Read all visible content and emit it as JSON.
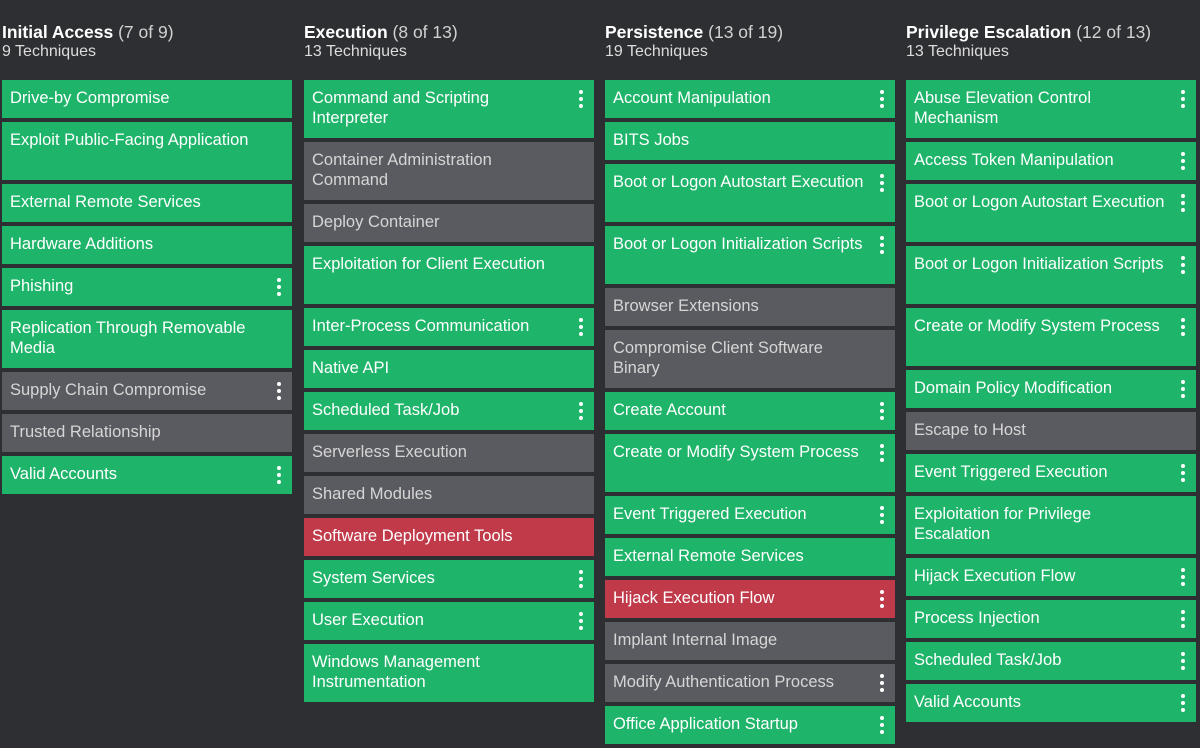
{
  "columns": [
    {
      "name": "Initial Access",
      "count": "(7 of 9)",
      "subtitle": "9 Techniques",
      "techniques": [
        {
          "label": "Drive-by Compromise",
          "status": "green",
          "lines": 1,
          "menu": false
        },
        {
          "label": "Exploit Public-Facing Application",
          "status": "green",
          "lines": 2,
          "menu": false
        },
        {
          "label": "External Remote Services",
          "status": "green",
          "lines": 1,
          "menu": false
        },
        {
          "label": "Hardware Additions",
          "status": "green",
          "lines": 1,
          "menu": false
        },
        {
          "label": "Phishing",
          "status": "green",
          "lines": 1,
          "menu": true
        },
        {
          "label": "Replication Through Removable Media",
          "status": "green",
          "lines": 2,
          "menu": false
        },
        {
          "label": "Supply Chain Compromise",
          "status": "gray",
          "lines": 1,
          "menu": true
        },
        {
          "label": "Trusted Relationship",
          "status": "gray",
          "lines": 1,
          "menu": false
        },
        {
          "label": "Valid Accounts",
          "status": "green",
          "lines": 1,
          "menu": true
        }
      ]
    },
    {
      "name": "Execution",
      "count": "(8 of 13)",
      "subtitle": "13 Techniques",
      "techniques": [
        {
          "label": "Command and Scripting Interpreter",
          "status": "green",
          "lines": 2,
          "menu": true
        },
        {
          "label": "Container Administration Command",
          "status": "gray",
          "lines": 2,
          "menu": false
        },
        {
          "label": "Deploy Container",
          "status": "gray",
          "lines": 1,
          "menu": false
        },
        {
          "label": "Exploitation for Client Execution",
          "status": "green",
          "lines": 2,
          "menu": false
        },
        {
          "label": "Inter-Process Communication",
          "status": "green",
          "lines": 1,
          "menu": true
        },
        {
          "label": "Native API",
          "status": "green",
          "lines": 1,
          "menu": false
        },
        {
          "label": "Scheduled Task/Job",
          "status": "green",
          "lines": 1,
          "menu": true
        },
        {
          "label": "Serverless Execution",
          "status": "gray",
          "lines": 1,
          "menu": false
        },
        {
          "label": "Shared Modules",
          "status": "gray",
          "lines": 1,
          "menu": false
        },
        {
          "label": "Software Deployment Tools",
          "status": "red",
          "lines": 1,
          "menu": false
        },
        {
          "label": "System Services",
          "status": "green",
          "lines": 1,
          "menu": true
        },
        {
          "label": "User Execution",
          "status": "green",
          "lines": 1,
          "menu": true
        },
        {
          "label": "Windows Management Instrumentation",
          "status": "green",
          "lines": 2,
          "menu": false
        }
      ]
    },
    {
      "name": "Persistence",
      "count": "(13 of 19)",
      "subtitle": "19 Techniques",
      "techniques": [
        {
          "label": "Account Manipulation",
          "status": "green",
          "lines": 1,
          "menu": true
        },
        {
          "label": "BITS Jobs",
          "status": "green",
          "lines": 1,
          "menu": false
        },
        {
          "label": "Boot or Logon Autostart Execution",
          "status": "green",
          "lines": 2,
          "menu": true
        },
        {
          "label": "Boot or Logon Initialization Scripts",
          "status": "green",
          "lines": 2,
          "menu": true
        },
        {
          "label": "Browser Extensions",
          "status": "gray",
          "lines": 1,
          "menu": false
        },
        {
          "label": "Compromise Client Software Binary",
          "status": "gray",
          "lines": 2,
          "menu": false
        },
        {
          "label": "Create Account",
          "status": "green",
          "lines": 1,
          "menu": true
        },
        {
          "label": "Create or Modify System Process",
          "status": "green",
          "lines": 2,
          "menu": true
        },
        {
          "label": "Event Triggered Execution",
          "status": "green",
          "lines": 1,
          "menu": true
        },
        {
          "label": "External Remote Services",
          "status": "green",
          "lines": 1,
          "menu": false
        },
        {
          "label": "Hijack Execution Flow",
          "status": "red",
          "lines": 1,
          "menu": true
        },
        {
          "label": "Implant Internal Image",
          "status": "gray",
          "lines": 1,
          "menu": false
        },
        {
          "label": "Modify Authentication Process",
          "status": "gray",
          "lines": 1,
          "menu": true
        },
        {
          "label": "Office Application Startup",
          "status": "green",
          "lines": 1,
          "menu": true
        }
      ]
    },
    {
      "name": "Privilege Escalation",
      "count": "(12 of 13)",
      "subtitle": "13 Techniques",
      "techniques": [
        {
          "label": "Abuse Elevation Control Mechanism",
          "status": "green",
          "lines": 2,
          "menu": true
        },
        {
          "label": "Access Token Manipulation",
          "status": "green",
          "lines": 1,
          "menu": true
        },
        {
          "label": "Boot or Logon Autostart Execution",
          "status": "green",
          "lines": 2,
          "menu": true
        },
        {
          "label": "Boot or Logon Initialization Scripts",
          "status": "green",
          "lines": 2,
          "menu": true
        },
        {
          "label": "Create or Modify System Process",
          "status": "green",
          "lines": 2,
          "menu": true
        },
        {
          "label": "Domain Policy Modification",
          "status": "green",
          "lines": 1,
          "menu": true
        },
        {
          "label": "Escape to Host",
          "status": "gray",
          "lines": 1,
          "menu": false
        },
        {
          "label": "Event Triggered Execution",
          "status": "green",
          "lines": 1,
          "menu": true
        },
        {
          "label": "Exploitation for Privilege Escalation",
          "status": "green",
          "lines": 2,
          "menu": false
        },
        {
          "label": "Hijack Execution Flow",
          "status": "green",
          "lines": 1,
          "menu": true
        },
        {
          "label": "Process Injection",
          "status": "green",
          "lines": 1,
          "menu": true
        },
        {
          "label": "Scheduled Task/Job",
          "status": "green",
          "lines": 1,
          "menu": true
        },
        {
          "label": "Valid Accounts",
          "status": "green",
          "lines": 1,
          "menu": true
        }
      ]
    }
  ],
  "colors": {
    "background": "#2e2f33",
    "green": "#1eb46a",
    "gray": "#5a5b60",
    "red": "#c03a4a"
  }
}
